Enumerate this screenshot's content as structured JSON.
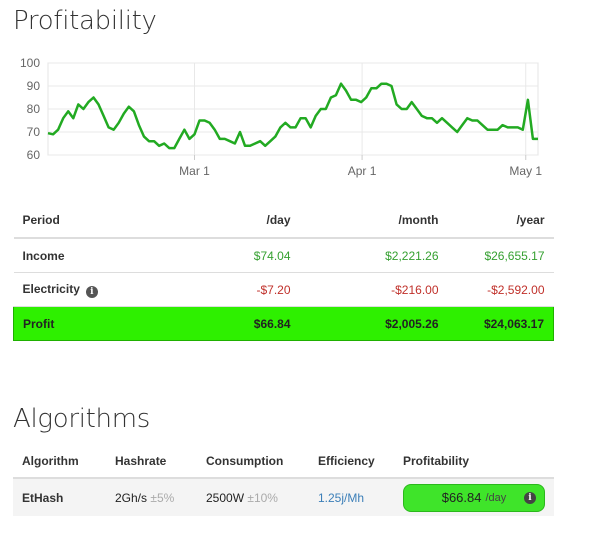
{
  "profitability": {
    "title": "Profitability",
    "table": {
      "headers": [
        "Period",
        "/day",
        "/month",
        "/year"
      ],
      "rows": [
        {
          "label": "Income",
          "day": "$74.04",
          "month": "$2,221.26",
          "year": "$26,655.17"
        },
        {
          "label": "Electricity",
          "info_icon": "info-icon",
          "day": "-$7.20",
          "month": "-$216.00",
          "year": "-$2,592.00"
        },
        {
          "label": "Profit",
          "day": "$66.84",
          "month": "$2,005.26",
          "year": "$24,063.17"
        }
      ]
    }
  },
  "chart_data": {
    "type": "line",
    "x_tick_labels": [
      "Mar 1",
      "Apr 1",
      "May 1"
    ],
    "y_ticks": [
      60,
      70,
      80,
      90,
      100
    ],
    "ylim": [
      60,
      100
    ],
    "grid": true,
    "series": [
      {
        "color": "#22aa22",
        "values": [
          69.5,
          69,
          71,
          76,
          79,
          76,
          82,
          80,
          83,
          85,
          82,
          77,
          72,
          71,
          74,
          78,
          81,
          79,
          73,
          68,
          66,
          66,
          64,
          65,
          63,
          63,
          67,
          71,
          67,
          69,
          75,
          75,
          74,
          71,
          67,
          67,
          66,
          65,
          70,
          64,
          64,
          65,
          66,
          64,
          66,
          68,
          72,
          74,
          72,
          72,
          76,
          76,
          72,
          77,
          80,
          80,
          85,
          86,
          91,
          88,
          84,
          84,
          83,
          85,
          89,
          89,
          91,
          91,
          90,
          82,
          80,
          80,
          83,
          80,
          77,
          76,
          76,
          74,
          76,
          74,
          72,
          70,
          73,
          76,
          75,
          75,
          73,
          71,
          71,
          71,
          73,
          72,
          72,
          72,
          71,
          84,
          67,
          67
        ]
      }
    ],
    "color_accent": "#22aa22"
  },
  "algorithms": {
    "title": "Algorithms",
    "headers": [
      "Algorithm",
      "Hashrate",
      "Consumption",
      "Efficiency",
      "Profitability"
    ],
    "rows": [
      {
        "algorithm": "EtHash",
        "hashrate": "2Gh/s",
        "hashrate_tol": "±5%",
        "consumption": "2500W",
        "consumption_tol": "±10%",
        "efficiency": "1.25j/Mh",
        "profit_value": "$66.84",
        "profit_unit": "/day",
        "info_icon": "info-icon"
      }
    ]
  }
}
